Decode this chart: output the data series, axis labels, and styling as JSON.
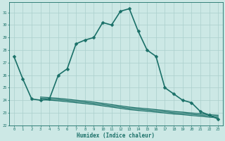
{
  "xlabel": "Humidex (Indice chaleur)",
  "ylabel": "",
  "xlim": [
    -0.5,
    23.5
  ],
  "ylim": [
    22,
    31.8
  ],
  "yticks": [
    22,
    23,
    24,
    25,
    26,
    27,
    28,
    29,
    30,
    31
  ],
  "xticks": [
    0,
    1,
    2,
    3,
    4,
    5,
    6,
    7,
    8,
    9,
    10,
    11,
    12,
    13,
    14,
    15,
    16,
    17,
    18,
    19,
    20,
    21,
    22,
    23
  ],
  "bg_color": "#cce8e5",
  "grid_color": "#aacfcc",
  "line_color": "#1a7068",
  "lines": [
    {
      "x": [
        0,
        1,
        2,
        3,
        4,
        5,
        6,
        7,
        8,
        9,
        10,
        11,
        12,
        13,
        14,
        15,
        16,
        17,
        18,
        19,
        20,
        21,
        22,
        23
      ],
      "y": [
        27.5,
        25.7,
        24.1,
        24.0,
        24.1,
        26.0,
        26.5,
        28.5,
        28.8,
        29.0,
        30.2,
        30.0,
        31.1,
        31.3,
        29.5,
        28.0,
        27.5,
        25.0,
        24.5,
        24.0,
        23.8,
        23.1,
        22.8,
        22.5
      ],
      "marker": "D",
      "markersize": 2.5,
      "linewidth": 1.2
    },
    {
      "x": [
        3,
        4,
        5,
        6,
        7,
        8,
        9,
        10,
        11,
        12,
        13,
        14,
        15,
        16,
        17,
        18,
        19,
        20,
        21,
        22,
        23
      ],
      "y": [
        24.05,
        24.0,
        23.95,
        23.88,
        23.8,
        23.73,
        23.65,
        23.55,
        23.45,
        23.35,
        23.25,
        23.18,
        23.12,
        23.05,
        22.98,
        22.9,
        22.85,
        22.78,
        22.72,
        22.65,
        22.6
      ],
      "marker": null,
      "markersize": 0,
      "linewidth": 0.9
    },
    {
      "x": [
        3,
        4,
        5,
        6,
        7,
        8,
        9,
        10,
        11,
        12,
        13,
        14,
        15,
        16,
        17,
        18,
        19,
        20,
        21,
        22,
        23
      ],
      "y": [
        24.15,
        24.1,
        24.05,
        23.98,
        23.9,
        23.83,
        23.75,
        23.65,
        23.55,
        23.45,
        23.35,
        23.28,
        23.22,
        23.15,
        23.08,
        23.0,
        22.95,
        22.88,
        22.82,
        22.75,
        22.7
      ],
      "marker": null,
      "markersize": 0,
      "linewidth": 0.9
    },
    {
      "x": [
        3,
        4,
        5,
        6,
        7,
        8,
        9,
        10,
        11,
        12,
        13,
        14,
        15,
        16,
        17,
        18,
        19,
        20,
        21,
        22,
        23
      ],
      "y": [
        24.25,
        24.2,
        24.15,
        24.08,
        24.0,
        23.93,
        23.85,
        23.75,
        23.65,
        23.55,
        23.45,
        23.38,
        23.32,
        23.25,
        23.18,
        23.1,
        23.05,
        22.98,
        22.92,
        22.85,
        22.8
      ],
      "marker": null,
      "markersize": 0,
      "linewidth": 0.9
    }
  ]
}
